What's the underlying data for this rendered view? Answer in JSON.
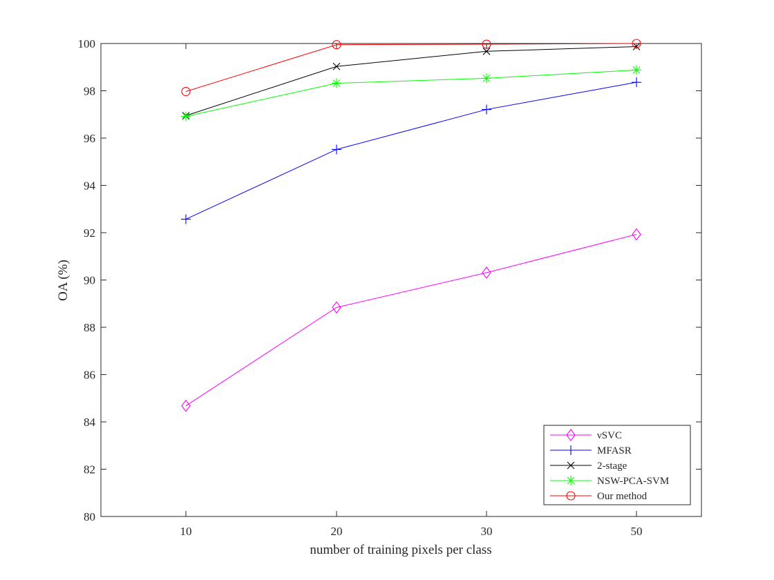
{
  "chart_data": {
    "type": "line",
    "title": "",
    "xlabel": "number of training pixels per class",
    "ylabel": "OA (%)",
    "categories": [
      "10",
      "20",
      "30",
      "50"
    ],
    "ylim": [
      80,
      100
    ],
    "yticks": [
      "80",
      "82",
      "84",
      "86",
      "88",
      "90",
      "92",
      "94",
      "96",
      "98",
      "100"
    ],
    "grid": false,
    "legend_position": "bottom-right",
    "series": [
      {
        "name": "νSVC",
        "color": "#ff00ff",
        "marker": "diamond",
        "values": [
          84.68,
          88.84,
          90.31,
          91.93
        ]
      },
      {
        "name": "MFASR",
        "color": "#0000ff",
        "marker": "plus",
        "values": [
          92.57,
          95.52,
          97.21,
          98.36
        ]
      },
      {
        "name": "2-stage",
        "color": "#000000",
        "marker": "cross",
        "values": [
          96.95,
          99.03,
          99.67,
          99.87
        ]
      },
      {
        "name": "NSW-PCA-SVM",
        "color": "#00ff00",
        "marker": "asterisk",
        "values": [
          96.92,
          98.32,
          98.53,
          98.88
        ]
      },
      {
        "name": "Our method",
        "color": "#ff0000",
        "marker": "circle",
        "values": [
          97.97,
          99.95,
          99.97,
          100.0
        ]
      }
    ]
  }
}
